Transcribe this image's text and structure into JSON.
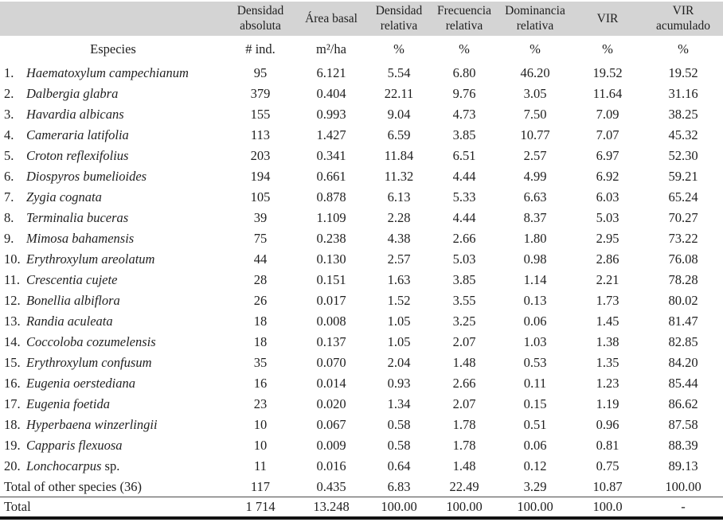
{
  "page": {
    "background_color": "#ffffff",
    "header_band_color": "#d4d4d4",
    "bottom_rule_color": "#121212",
    "text_color": "#1f1f1f"
  },
  "table": {
    "headers": [
      {
        "title": "",
        "unit": "Especies"
      },
      {
        "title": "Densidad absoluta",
        "unit": "# ind."
      },
      {
        "title": "Área basal",
        "unit": "m²/ha"
      },
      {
        "title": "Densidad relativa",
        "unit": "%"
      },
      {
        "title": "Frecuencia relativa",
        "unit": "%"
      },
      {
        "title": "Dominancia relativa",
        "unit": "%"
      },
      {
        "title": "VIR",
        "unit": "%"
      },
      {
        "title": "VIR acumulado",
        "unit": "%"
      }
    ],
    "rows": [
      {
        "num": "1.",
        "species": "Haematoxylum campechianum",
        "suffix": "",
        "dens_abs": "95",
        "area": "6.121",
        "dens_rel": "5.54",
        "frec": "6.80",
        "dom": "46.20",
        "vir": "19.52",
        "vir_acum": "19.52"
      },
      {
        "num": "2.",
        "species": "Dalbergia glabra",
        "suffix": "",
        "dens_abs": "379",
        "area": "0.404",
        "dens_rel": "22.11",
        "frec": "9.76",
        "dom": "3.05",
        "vir": "11.64",
        "vir_acum": "31.16"
      },
      {
        "num": "3.",
        "species": "Havardia albicans",
        "suffix": "",
        "dens_abs": "155",
        "area": "0.993",
        "dens_rel": "9.04",
        "frec": "4.73",
        "dom": "7.50",
        "vir": "7.09",
        "vir_acum": "38.25"
      },
      {
        "num": "4.",
        "species": "Cameraria latifolia",
        "suffix": "",
        "dens_abs": "113",
        "area": "1.427",
        "dens_rel": "6.59",
        "frec": "3.85",
        "dom": "10.77",
        "vir": "7.07",
        "vir_acum": "45.32"
      },
      {
        "num": "5.",
        "species": "Croton reflexifolius",
        "suffix": "",
        "dens_abs": "203",
        "area": "0.341",
        "dens_rel": "11.84",
        "frec": "6.51",
        "dom": "2.57",
        "vir": "6.97",
        "vir_acum": "52.30"
      },
      {
        "num": "6.",
        "species": "Diospyros bumelioides",
        "suffix": "",
        "dens_abs": "194",
        "area": "0.661",
        "dens_rel": "11.32",
        "frec": "4.44",
        "dom": "4.99",
        "vir": "6.92",
        "vir_acum": "59.21"
      },
      {
        "num": "7.",
        "species": "Zygia cognata",
        "suffix": "",
        "dens_abs": "105",
        "area": "0.878",
        "dens_rel": "6.13",
        "frec": "5.33",
        "dom": "6.63",
        "vir": "6.03",
        "vir_acum": "65.24"
      },
      {
        "num": "8.",
        "species": "Terminalia buceras",
        "suffix": "",
        "dens_abs": "39",
        "area": "1.109",
        "dens_rel": "2.28",
        "frec": "4.44",
        "dom": "8.37",
        "vir": "5.03",
        "vir_acum": "70.27"
      },
      {
        "num": "9.",
        "species": "Mimosa bahamensis",
        "suffix": "",
        "dens_abs": "75",
        "area": "0.238",
        "dens_rel": "4.38",
        "frec": "2.66",
        "dom": "1.80",
        "vir": "2.95",
        "vir_acum": "73.22"
      },
      {
        "num": "10.",
        "species": "Erythroxylum areolatum",
        "suffix": "",
        "dens_abs": "44",
        "area": "0.130",
        "dens_rel": "2.57",
        "frec": "5.03",
        "dom": "0.98",
        "vir": "2.86",
        "vir_acum": "76.08"
      },
      {
        "num": "11.",
        "species": "Crescentia cujete",
        "suffix": "",
        "dens_abs": "28",
        "area": "0.151",
        "dens_rel": "1.63",
        "frec": "3.85",
        "dom": "1.14",
        "vir": "2.21",
        "vir_acum": "78.28"
      },
      {
        "num": "12.",
        "species": "Bonellia albiflora",
        "suffix": "",
        "dens_abs": "26",
        "area": "0.017",
        "dens_rel": "1.52",
        "frec": "3.55",
        "dom": "0.13",
        "vir": "1.73",
        "vir_acum": "80.02"
      },
      {
        "num": "13.",
        "species": "Randia aculeata",
        "suffix": "",
        "dens_abs": "18",
        "area": "0.008",
        "dens_rel": "1.05",
        "frec": "3.25",
        "dom": "0.06",
        "vir": "1.45",
        "vir_acum": "81.47"
      },
      {
        "num": "14.",
        "species": "Coccoloba cozumelensis",
        "suffix": "",
        "dens_abs": "18",
        "area": "0.137",
        "dens_rel": "1.05",
        "frec": "2.07",
        "dom": "1.03",
        "vir": "1.38",
        "vir_acum": "82.85"
      },
      {
        "num": "15.",
        "species": "Erythroxylum confusum",
        "suffix": "",
        "dens_abs": "35",
        "area": "0.070",
        "dens_rel": "2.04",
        "frec": "1.48",
        "dom": "0.53",
        "vir": "1.35",
        "vir_acum": "84.20"
      },
      {
        "num": "16.",
        "species": "Eugenia oerstediana",
        "suffix": "",
        "dens_abs": "16",
        "area": "0.014",
        "dens_rel": "0.93",
        "frec": "2.66",
        "dom": "0.11",
        "vir": "1.23",
        "vir_acum": "85.44"
      },
      {
        "num": "17.",
        "species": "Eugenia foetida",
        "suffix": "",
        "dens_abs": "23",
        "area": "0.020",
        "dens_rel": "1.34",
        "frec": "2.07",
        "dom": "0.15",
        "vir": "1.19",
        "vir_acum": "86.62"
      },
      {
        "num": "18.",
        "species": "Hyperbaena winzerlingii",
        "suffix": "",
        "dens_abs": "10",
        "area": "0.067",
        "dens_rel": "0.58",
        "frec": "1.78",
        "dom": "0.51",
        "vir": "0.96",
        "vir_acum": "87.58"
      },
      {
        "num": "19.",
        "species": "Capparis flexuosa",
        "suffix": "",
        "dens_abs": "10",
        "area": "0.009",
        "dens_rel": "0.58",
        "frec": "1.78",
        "dom": "0.06",
        "vir": "0.81",
        "vir_acum": "88.39"
      },
      {
        "num": "20.",
        "species": "Lonchocarpus",
        "suffix": " sp.",
        "dens_abs": "11",
        "area": "0.016",
        "dens_rel": "0.64",
        "frec": "1.48",
        "dom": "0.12",
        "vir": "0.75",
        "vir_acum": "89.13"
      }
    ],
    "summary_rows": [
      {
        "label": "Total of other species (36)",
        "dens_abs": "117",
        "area": "0.435",
        "dens_rel": "6.83",
        "frec": "22.49",
        "dom": "3.29",
        "vir": "10.87",
        "vir_acum": "100.00"
      },
      {
        "label": "Total",
        "dens_abs": "1 714",
        "area": "13.248",
        "dens_rel": "100.00",
        "frec": "100.00",
        "dom": "100.00",
        "vir": "100.0",
        "vir_acum": "-"
      }
    ]
  }
}
